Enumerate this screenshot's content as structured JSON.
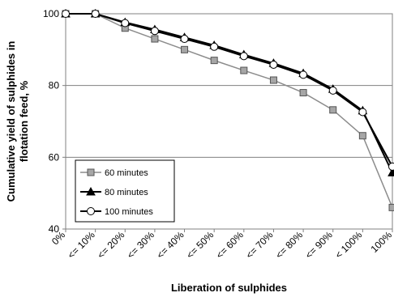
{
  "chart_data": {
    "type": "line",
    "title": "",
    "xlabel": "Liberation of sulphides",
    "ylabel_lines": [
      "Cumulative yield of sulphides in",
      "flotation feed, %"
    ],
    "categories": [
      "0%",
      "<= 10%",
      "<= 20%",
      "<= 30%",
      "<= 40%",
      "<= 50%",
      "<= 60%",
      "<= 70%",
      "<= 80%",
      "<= 90%",
      "< 100%",
      "100%"
    ],
    "ylim": [
      40,
      100
    ],
    "yticks": [
      "40",
      "60",
      "80",
      "100"
    ],
    "grid": "horizontal",
    "legend_position": "bottom-left",
    "series": [
      {
        "name": "60 minutes",
        "marker": "square",
        "color": "#8c8c8c",
        "marker_fill": "#a6a6a6",
        "values": [
          100,
          100,
          96,
          93,
          90,
          87,
          84.2,
          81.5,
          78,
          73.2,
          66,
          46
        ]
      },
      {
        "name": "80 minutes",
        "marker": "triangle",
        "color": "#000000",
        "marker_fill": "#000000",
        "values": [
          100,
          100,
          97.6,
          95.6,
          93.4,
          91.2,
          88.6,
          86.2,
          83.4,
          79,
          73,
          55.7
        ]
      },
      {
        "name": "100 minutes",
        "marker": "circle",
        "color": "#000000",
        "marker_fill": "#ffffff",
        "values": [
          100,
          100,
          97.4,
          95.2,
          93,
          90.8,
          88.2,
          85.8,
          83,
          78.6,
          72.6,
          57.4
        ]
      }
    ]
  }
}
